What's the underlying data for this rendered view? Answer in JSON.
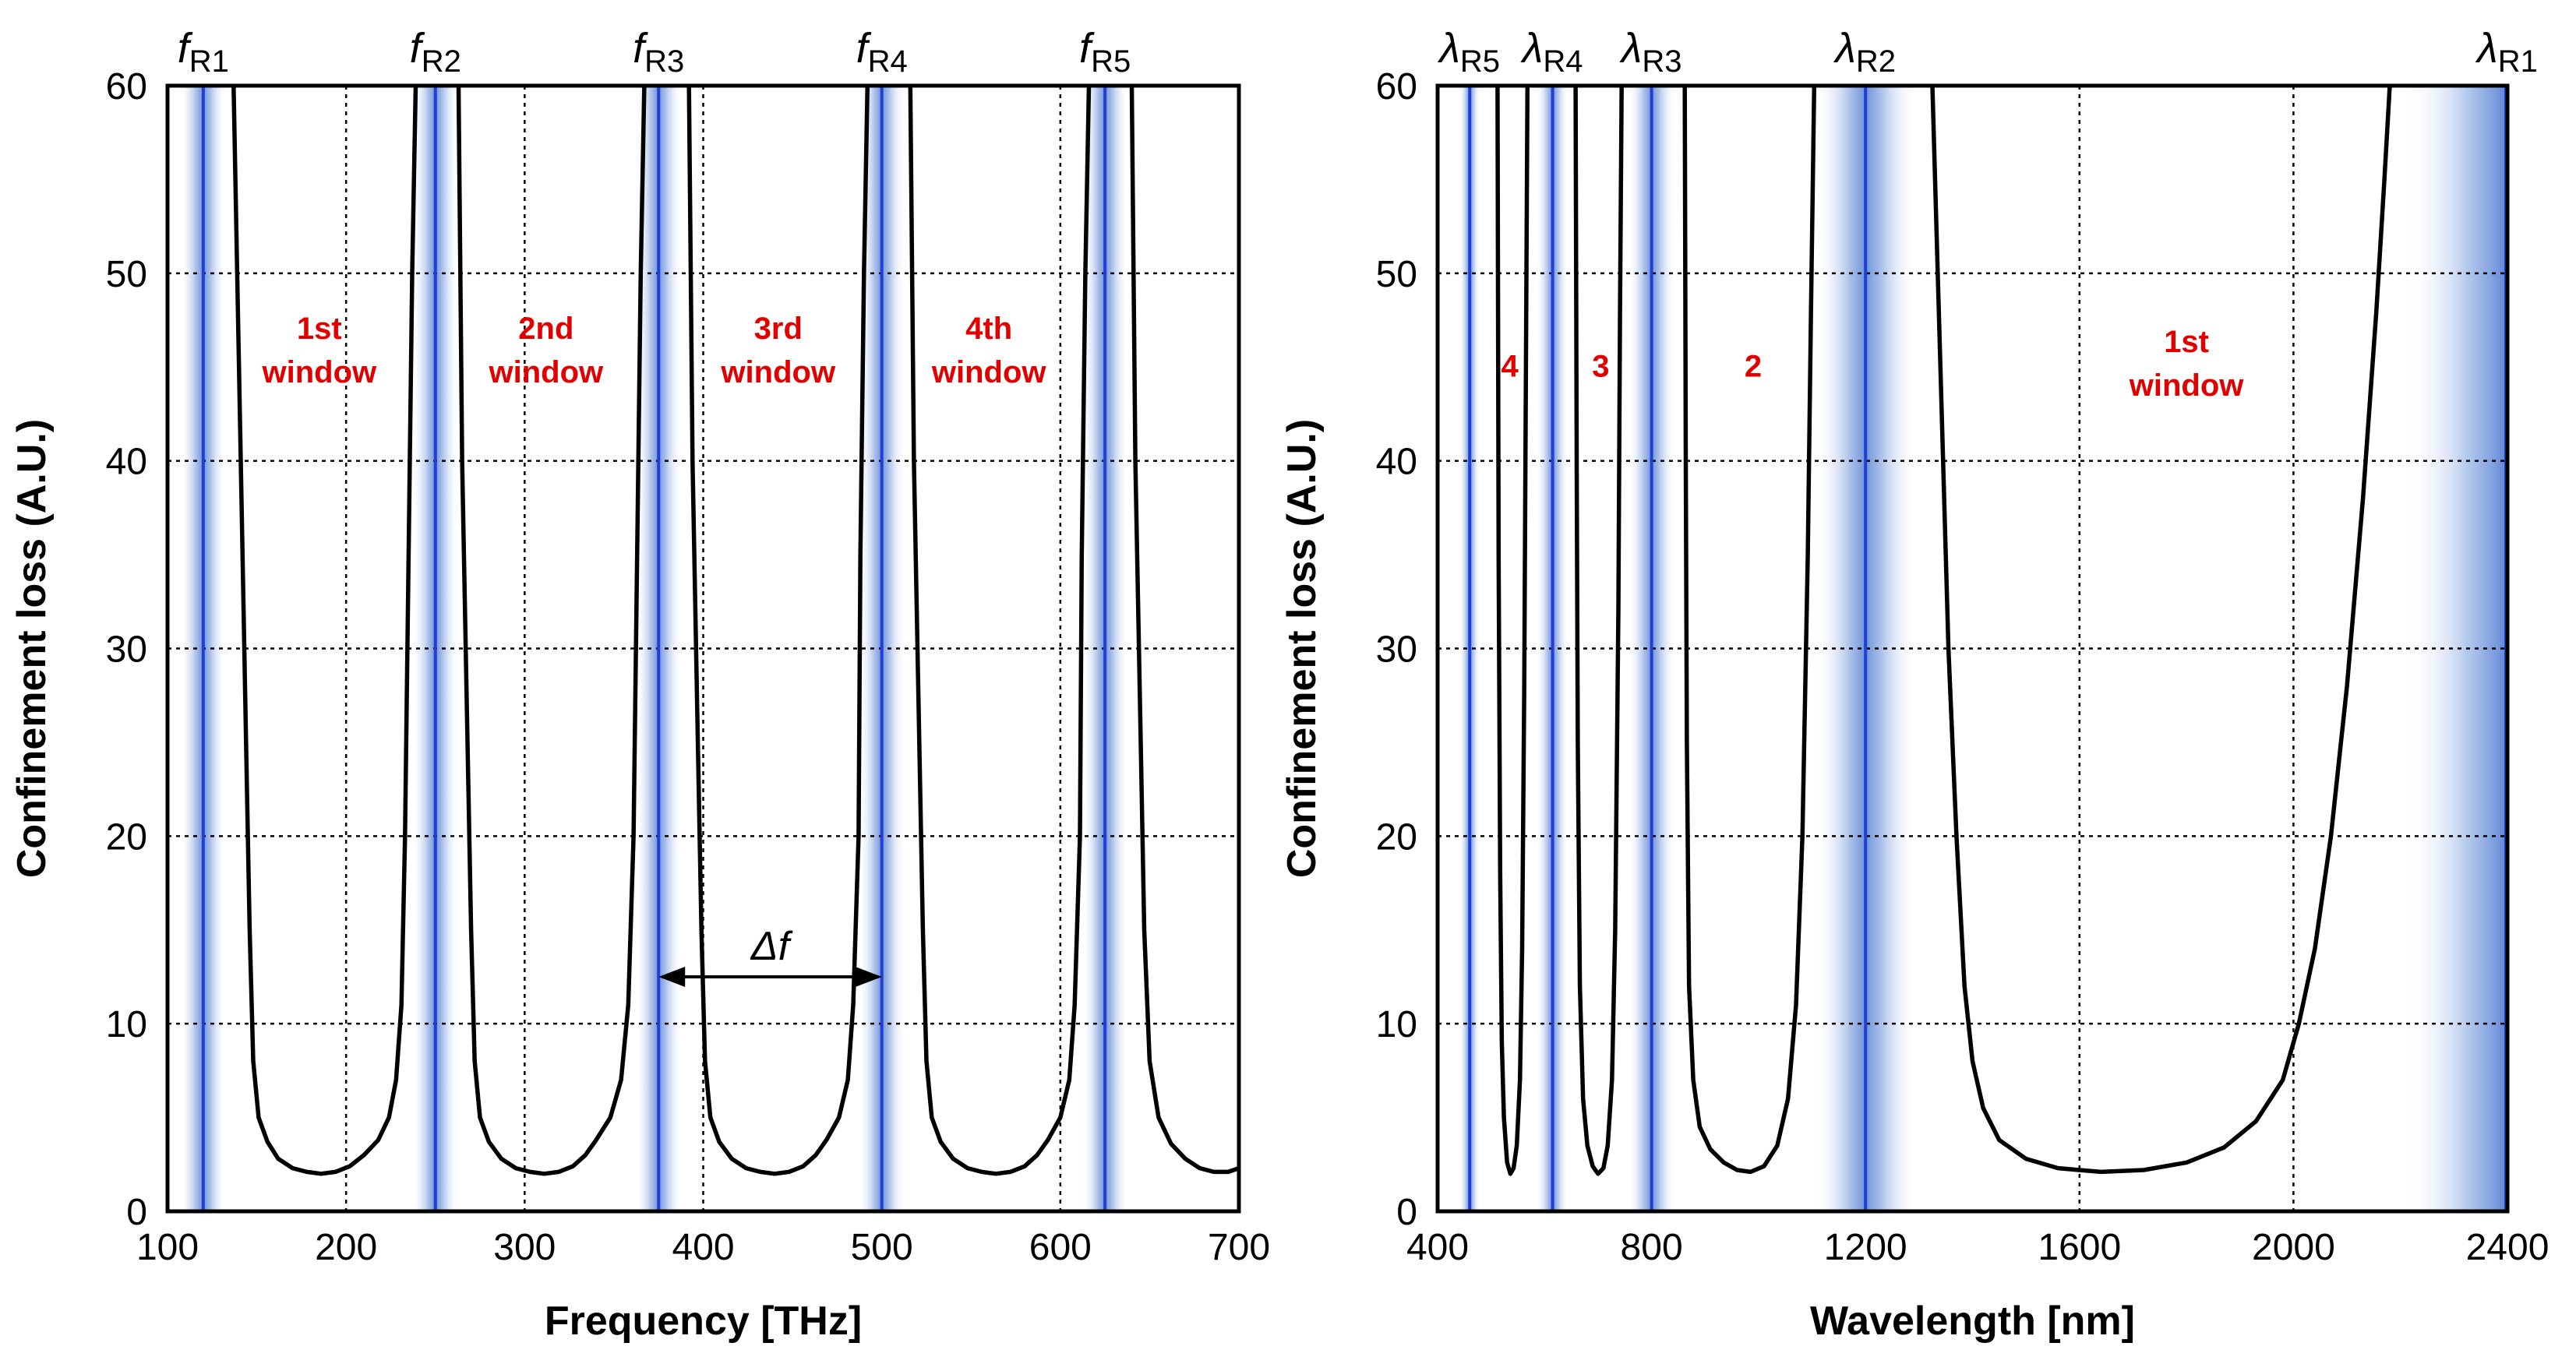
{
  "chart_data": [
    {
      "type": "line",
      "xlabel": "Frequency [THz]",
      "ylabel": "Confinement loss (A.U.)",
      "xlim": [
        100,
        700
      ],
      "ylim": [
        0,
        60
      ],
      "xticks": [
        100,
        200,
        300,
        400,
        500,
        600,
        700
      ],
      "yticks": [
        0,
        10,
        20,
        30,
        40,
        50,
        60
      ],
      "grid": "dotted",
      "resonances": [
        {
          "label_main": "f",
          "label_sub": "R1",
          "x": 120,
          "band_width": 26
        },
        {
          "label_main": "f",
          "label_sub": "R2",
          "x": 250,
          "band_width": 26
        },
        {
          "label_main": "f",
          "label_sub": "R3",
          "x": 375,
          "band_width": 26
        },
        {
          "label_main": "f",
          "label_sub": "R4",
          "x": 500,
          "band_width": 26
        },
        {
          "label_main": "f",
          "label_sub": "R5",
          "x": 625,
          "band_width": 26
        }
      ],
      "windows": [
        {
          "line1": "1st",
          "line2": "window",
          "x": 185,
          "y": 46.5
        },
        {
          "line1": "2nd",
          "line2": "window",
          "x": 312,
          "y": 46.5
        },
        {
          "line1": "3rd",
          "line2": "window",
          "x": 442,
          "y": 46.5
        },
        {
          "line1": "4th",
          "line2": "window",
          "x": 560,
          "y": 46.5
        }
      ],
      "spacing_annotation": {
        "label": "Δf",
        "from": 375,
        "to": 500,
        "y": 12.5
      },
      "series": [
        {
          "x": [
            137,
            141,
            144,
            146,
            148,
            151,
            156,
            162,
            170,
            178,
            186,
            194,
            202,
            210,
            218,
            224,
            228,
            231,
            233,
            235,
            237,
            239
          ],
          "y": [
            60,
            40,
            25,
            15,
            8,
            5,
            3.7,
            2.8,
            2.3,
            2.1,
            2,
            2.1,
            2.4,
            3.0,
            3.8,
            5,
            7,
            11,
            20,
            35,
            50,
            60
          ]
        },
        {
          "x": [
            263,
            265,
            268,
            270,
            272,
            275,
            280,
            287,
            295,
            303,
            311,
            319,
            327,
            334,
            340,
            348,
            354,
            358,
            361,
            363,
            365,
            367
          ],
          "y": [
            60,
            40,
            25,
            15,
            8,
            5,
            3.7,
            2.8,
            2.3,
            2.1,
            2,
            2.1,
            2.4,
            3.0,
            3.8,
            5,
            7,
            11,
            20,
            35,
            50,
            60
          ]
        },
        {
          "x": [
            392,
            394,
            397,
            399,
            401,
            404,
            409,
            416,
            424,
            432,
            440,
            448,
            456,
            463,
            469,
            476,
            481,
            484,
            487,
            488,
            490,
            492
          ],
          "y": [
            60,
            40,
            25,
            15,
            8,
            5,
            3.7,
            2.8,
            2.3,
            2.1,
            2,
            2.1,
            2.4,
            3.0,
            3.8,
            5,
            7,
            11,
            20,
            35,
            50,
            60
          ]
        },
        {
          "x": [
            516,
            518,
            521,
            523,
            525,
            528,
            533,
            540,
            548,
            556,
            564,
            572,
            580,
            587,
            593,
            600,
            605,
            608,
            611,
            612,
            614,
            616
          ],
          "y": [
            60,
            40,
            25,
            15,
            8,
            5,
            3.7,
            2.8,
            2.3,
            2.1,
            2,
            2.1,
            2.4,
            3.0,
            3.8,
            5,
            7,
            11,
            20,
            35,
            50,
            60
          ]
        },
        {
          "x": [
            640,
            642,
            645,
            647,
            650,
            655,
            662,
            670,
            678,
            686,
            694,
            700
          ],
          "y": [
            60,
            40,
            25,
            15,
            8,
            5,
            3.6,
            2.8,
            2.3,
            2.1,
            2.1,
            2.3
          ]
        }
      ]
    },
    {
      "type": "line",
      "xlabel": "Wavelength [nm]",
      "ylabel": "Confinement loss (A.U.)",
      "xlim": [
        400,
        2400
      ],
      "ylim": [
        0,
        60
      ],
      "xticks": [
        400,
        800,
        1200,
        1600,
        2000,
        2400
      ],
      "yticks": [
        0,
        10,
        20,
        30,
        40,
        50,
        60
      ],
      "grid": "dotted",
      "resonances": [
        {
          "label_main": "λ",
          "label_sub": "R5",
          "x": 460,
          "band_width": 40
        },
        {
          "label_main": "λ",
          "label_sub": "R4",
          "x": 615,
          "band_width": 60
        },
        {
          "label_main": "λ",
          "label_sub": "R3",
          "x": 800,
          "band_width": 90
        },
        {
          "label_main": "λ",
          "label_sub": "R2",
          "x": 1200,
          "band_width": 190
        },
        {
          "label_main": "λ",
          "label_sub": "R1",
          "x": 2400,
          "band_width": 190
        }
      ],
      "windows": [
        {
          "line1": "4",
          "line2": "",
          "x": 535,
          "y": 44.5
        },
        {
          "line1": "3",
          "line2": "",
          "x": 705,
          "y": 44.5
        },
        {
          "line1": "2",
          "line2": "",
          "x": 990,
          "y": 44.5
        },
        {
          "line1": "1st",
          "line2": "window",
          "x": 1800,
          "y": 45.8
        }
      ],
      "series": [
        {
          "x": [
            512,
            514,
            517,
            520,
            524,
            530,
            536,
            542,
            548,
            554,
            558,
            562,
            566,
            568
          ],
          "y": [
            60,
            35,
            18,
            9,
            5,
            2.6,
            2,
            2.3,
            3.5,
            7,
            14,
            28,
            50,
            60
          ]
        },
        {
          "x": [
            658,
            660,
            662,
            666,
            672,
            680,
            690,
            700,
            710,
            718,
            726,
            732,
            738,
            741,
            744
          ],
          "y": [
            60,
            40,
            25,
            12,
            6,
            3.5,
            2.4,
            2,
            2.3,
            3.5,
            7,
            15,
            32,
            48,
            60
          ]
        },
        {
          "x": [
            862,
            864,
            866,
            870,
            878,
            890,
            910,
            935,
            960,
            985,
            1010,
            1035,
            1055,
            1070,
            1082,
            1092,
            1098,
            1104
          ],
          "y": [
            60,
            40,
            25,
            12,
            7,
            4.5,
            3.3,
            2.6,
            2.2,
            2.1,
            2.4,
            3.5,
            6,
            11,
            20,
            35,
            48,
            60
          ]
        },
        {
          "x": [
            1325,
            1340,
            1355,
            1370,
            1385,
            1400,
            1420,
            1450,
            1500,
            1560,
            1640,
            1720,
            1800,
            1870,
            1930,
            1980,
            2010,
            2040,
            2070,
            2100,
            2130,
            2155,
            2170,
            2180
          ],
          "y": [
            60,
            45,
            30,
            20,
            12,
            8,
            5.5,
            3.8,
            2.8,
            2.3,
            2.1,
            2.2,
            2.6,
            3.4,
            4.8,
            7,
            10,
            14,
            20,
            28,
            38,
            48,
            55,
            60
          ]
        }
      ]
    }
  ]
}
